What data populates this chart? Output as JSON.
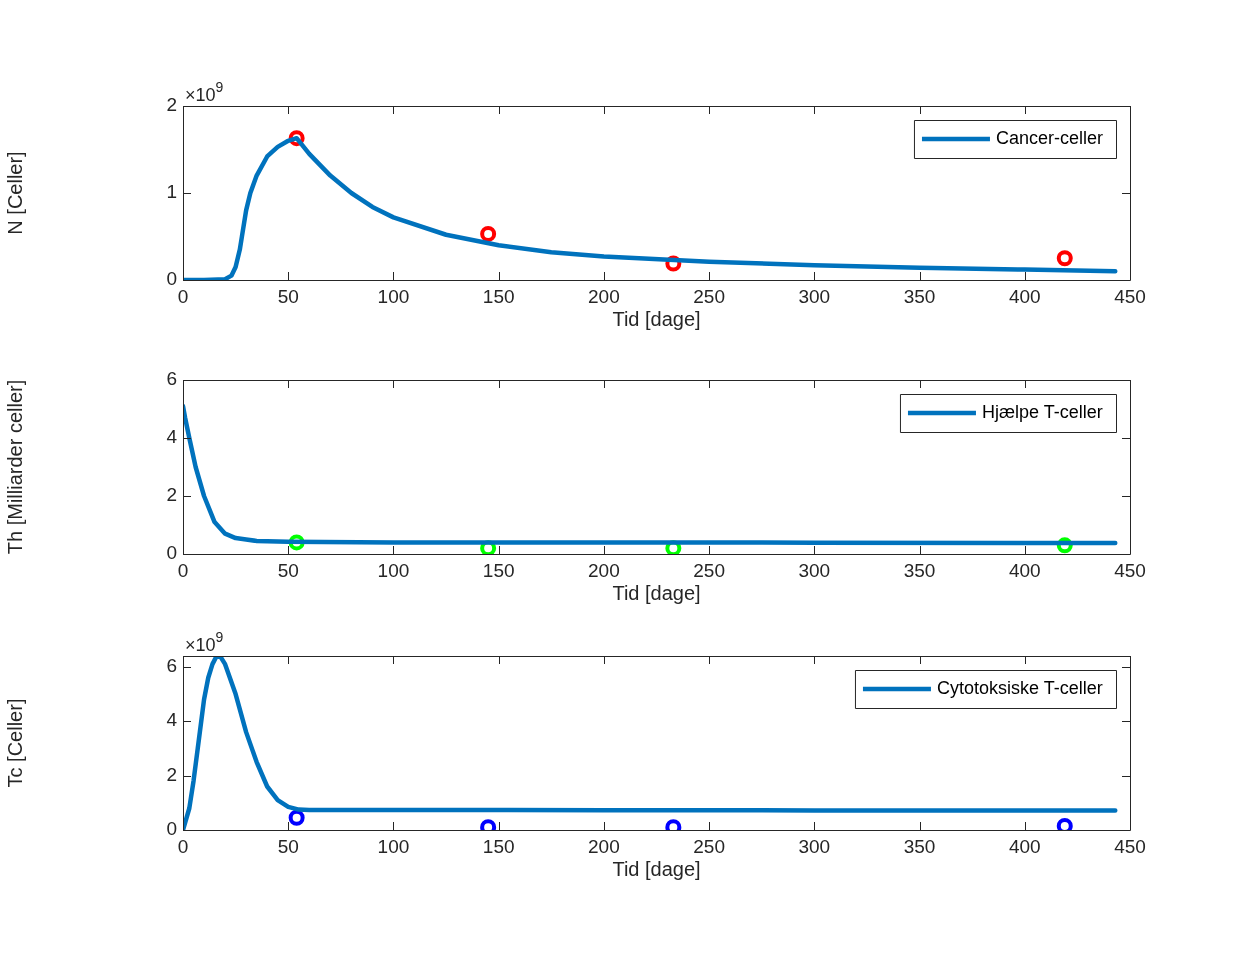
{
  "chart_data": [
    {
      "type": "line",
      "xlabel": "Tid [dage]",
      "ylabel": "N [Celler]",
      "annotations": [
        "×10$^{9}$"
      ],
      "xlim": [
        0,
        450
      ],
      "xticks": [
        0,
        50,
        100,
        150,
        200,
        250,
        300,
        350,
        400,
        450
      ],
      "ylim": [
        0,
        2
      ],
      "yticks": [
        0,
        1,
        2
      ],
      "legend": "top right",
      "series": [
        {
          "name": "Cancer-celler",
          "color": "#0072bd",
          "marker": "none",
          "x": [
            0,
            10,
            20,
            23,
            25,
            27,
            28,
            30,
            32,
            35,
            40,
            45,
            50,
            54,
            60,
            70,
            80,
            90,
            100,
            125,
            150,
            175,
            200,
            250,
            300,
            350,
            400,
            443
          ],
          "values": [
            0,
            0,
            0.01,
            0.05,
            0.15,
            0.35,
            0.5,
            0.8,
            1.0,
            1.2,
            1.42,
            1.53,
            1.6,
            1.63,
            1.45,
            1.2,
            1.0,
            0.84,
            0.72,
            0.52,
            0.4,
            0.32,
            0.27,
            0.21,
            0.17,
            0.14,
            0.12,
            0.1
          ]
        },
        {
          "type": "scatter",
          "color": "#ff0000",
          "marker": "circle",
          "x": [
            54,
            145,
            233,
            419
          ],
          "values": [
            1.63,
            0.53,
            0.19,
            0.25
          ]
        }
      ]
    },
    {
      "type": "line",
      "xlabel": "Tid [dage]",
      "ylabel": "Th [Milliarder celler]",
      "xlim": [
        0,
        450
      ],
      "xticks": [
        0,
        50,
        100,
        150,
        200,
        250,
        300,
        350,
        400,
        450
      ],
      "ylim": [
        0,
        6
      ],
      "yticks": [
        0,
        2,
        4,
        6
      ],
      "legend": "top right",
      "series": [
        {
          "name": "Hjælpe T-celler",
          "color": "#0072bd",
          "marker": "none",
          "x": [
            0,
            1,
            3,
            6,
            10,
            15,
            20,
            25,
            30,
            35,
            50,
            100,
            200,
            300,
            443
          ],
          "values": [
            5.1,
            4.7,
            4.0,
            3.0,
            2.0,
            1.1,
            0.7,
            0.55,
            0.5,
            0.45,
            0.42,
            0.4,
            0.4,
            0.39,
            0.38
          ]
        },
        {
          "type": "scatter",
          "color": "#00ff00",
          "marker": "circle",
          "x": [
            54,
            145,
            233,
            419
          ],
          "values": [
            0.4,
            0.2,
            0.2,
            0.3
          ]
        }
      ]
    },
    {
      "type": "line",
      "xlabel": "Tid [dage]",
      "ylabel": "Tc [Celler]",
      "annotations": [
        "×10$^{9}$"
      ],
      "xlim": [
        0,
        450
      ],
      "xticks": [
        0,
        50,
        100,
        150,
        200,
        250,
        300,
        350,
        400,
        450
      ],
      "ylim": [
        0,
        6.4
      ],
      "yticks": [
        0,
        2,
        4,
        6
      ],
      "legend": "top right",
      "series": [
        {
          "name": "Cytotoksiske T-celler",
          "color": "#0072bd",
          "marker": "none",
          "x": [
            0,
            3,
            5,
            7,
            10,
            12,
            14,
            16,
            18,
            20,
            25,
            30,
            35,
            40,
            45,
            50,
            55,
            60,
            100,
            200,
            300,
            443
          ],
          "values": [
            0,
            0.8,
            1.8,
            3.0,
            4.8,
            5.6,
            6.1,
            6.4,
            6.35,
            6.1,
            5.0,
            3.6,
            2.5,
            1.6,
            1.1,
            0.85,
            0.75,
            0.74,
            0.74,
            0.73,
            0.72,
            0.72
          ]
        },
        {
          "type": "scatter",
          "color": "#0000ff",
          "marker": "circle",
          "x": [
            54,
            145,
            233,
            419
          ],
          "values": [
            0.45,
            0.1,
            0.1,
            0.15
          ]
        }
      ]
    }
  ]
}
